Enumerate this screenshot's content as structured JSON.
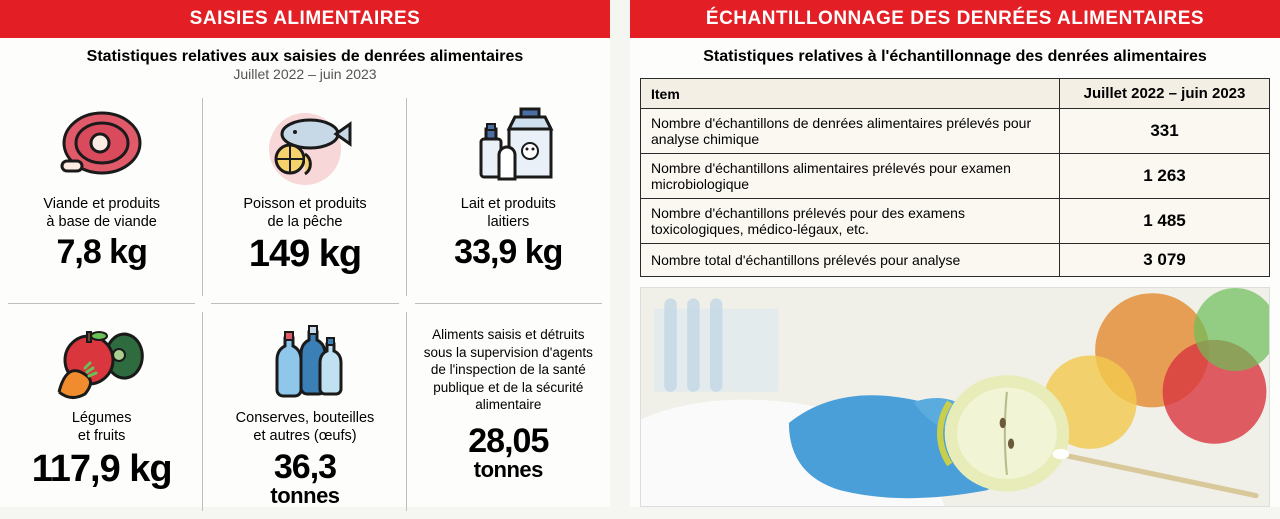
{
  "colors": {
    "banner_bg": "#e31e24",
    "banner_text": "#ffffff",
    "divider": "#bfbfbf",
    "table_border": "#2b2b2b",
    "table_bg": "#fbf8f1",
    "table_header_bg": "#f3efe4"
  },
  "left": {
    "banner": "SAISIES ALIMENTAIRES",
    "subtitle": "Statistiques relatives aux saisies de denrées alimentaires",
    "period": "Juillet 2022 – juin 2023",
    "cells": [
      {
        "label": "Viande et produits\nà base de viande",
        "value": "7,8 kg"
      },
      {
        "label": "Poisson et produits\nde la pêche",
        "value": "149 kg"
      },
      {
        "label": "Lait et produits\nlaitiers",
        "value": "33,9 kg"
      },
      {
        "label": "Légumes\net fruits",
        "value": "117,9 kg"
      },
      {
        "label": "Conserves, bouteilles\net autres (œufs)",
        "value": "36,3",
        "unit": "tonnes"
      },
      {
        "label": "Aliments saisis et détruits sous la supervision d'agents de l'inspection de la santé publique et de la sécurité alimentaire",
        "value": "28,05",
        "unit": "tonnes"
      }
    ]
  },
  "right": {
    "banner": "ÉCHANTILLONNAGE DES DENRÉES ALIMENTAIRES",
    "subtitle": "Statistiques relatives à l'échantillonnage des denrées alimentaires",
    "table": {
      "headers": [
        "Item",
        "Juillet 2022 – juin 2023"
      ],
      "rows": [
        [
          "Nombre d'échantillons de denrées alimentaires prélevés pour analyse chimique",
          "331"
        ],
        [
          "Nombre d'échantillons alimentaires prélevés pour examen microbiologique",
          "1 263"
        ],
        [
          "Nombre d'échantillons prélevés pour des examens toxicologiques, médico-légaux, etc.",
          "1 485"
        ],
        [
          "Nombre total d'échantillons prélevés pour analyse",
          "3 079"
        ]
      ]
    }
  }
}
